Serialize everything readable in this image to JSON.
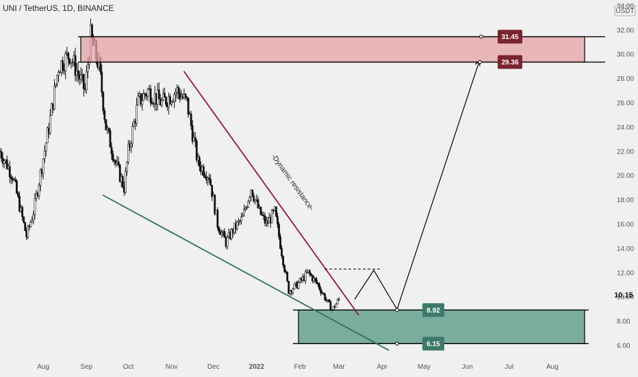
{
  "header": {
    "title": "UNI / TetherUS, 1D, BINANCE"
  },
  "price_axis": {
    "unit": "USDT",
    "current_price": "10.15"
  },
  "colors": {
    "background": "#f0f0f0",
    "candle": "#111111",
    "supply_zone": "#e5a2a6",
    "demand_zone": "#5e9c8a",
    "resistance_line": "#8e1b2a",
    "support_line": "#2f6e5e",
    "supply_tag": "#7a2430",
    "demand_tag": "#3d7a6a"
  },
  "annotations": {
    "dynamic_resistance_label": "-Dynamic resistance-",
    "supply_top": "31.45",
    "supply_bottom": "29.36",
    "demand_top": "8.92",
    "demand_bottom": "6.15"
  },
  "chart_data": {
    "type": "candlestick",
    "title": "UNI / TetherUS, 1D, BINANCE",
    "ylabel": "USDT",
    "ylim": [
      6,
      34
    ],
    "y_ticks": [
      "6.00",
      "8.00",
      "10.00",
      "12.00",
      "14.00",
      "16.00",
      "18.00",
      "20.00",
      "22.00",
      "24.00",
      "26.00",
      "28.00",
      "30.00",
      "32.00",
      "34.00"
    ],
    "x_ticks": [
      "Aug",
      "Sep",
      "Oct",
      "Nov",
      "Dec",
      "2022",
      "Feb",
      "Mar",
      "Apr",
      "May",
      "Jun",
      "Jul",
      "Aug"
    ],
    "price_path": [
      [
        "2021-07-01",
        22
      ],
      [
        "2021-07-10",
        20
      ],
      [
        "2021-07-20",
        15
      ],
      [
        "2021-07-25",
        17
      ],
      [
        "2021-08-05",
        24
      ],
      [
        "2021-08-12",
        29
      ],
      [
        "2021-08-20",
        30
      ],
      [
        "2021-08-31",
        27
      ],
      [
        "2021-09-04",
        31.5
      ],
      [
        "2021-09-10",
        29
      ],
      [
        "2021-09-15",
        24
      ],
      [
        "2021-09-22",
        21
      ],
      [
        "2021-09-28",
        19
      ],
      [
        "2021-10-01",
        22
      ],
      [
        "2021-10-08",
        26
      ],
      [
        "2021-10-15",
        27
      ],
      [
        "2021-10-25",
        26
      ],
      [
        "2021-11-05",
        27
      ],
      [
        "2021-11-12",
        26
      ],
      [
        "2021-11-20",
        21
      ],
      [
        "2021-11-28",
        20
      ],
      [
        "2021-12-04",
        16
      ],
      [
        "2021-12-10",
        14.5
      ],
      [
        "2021-12-15",
        15.5
      ],
      [
        "2021-12-22",
        16.5
      ],
      [
        "2021-12-28",
        19
      ],
      [
        "2022-01-03",
        17
      ],
      [
        "2022-01-08",
        16
      ],
      [
        "2022-01-14",
        17
      ],
      [
        "2022-01-20",
        13
      ],
      [
        "2022-01-24",
        10.5
      ],
      [
        "2022-01-30",
        11
      ],
      [
        "2022-02-07",
        12
      ],
      [
        "2022-02-14",
        11
      ],
      [
        "2022-02-24",
        8.9
      ],
      [
        "2022-03-01",
        9.8
      ]
    ],
    "zones": [
      {
        "name": "supply",
        "top": 31.45,
        "bottom": 29.36
      },
      {
        "name": "demand",
        "top": 8.92,
        "bottom": 6.15
      }
    ],
    "trendlines": [
      {
        "name": "Dynamic resistance",
        "from": [
          "2021-11-01",
          28.6
        ],
        "to": [
          "2022-03-25",
          8.5
        ]
      },
      {
        "name": "support",
        "from": [
          "2021-09-16",
          18.4
        ],
        "to": [
          "2022-03-25",
          5.6
        ]
      }
    ],
    "projection": [
      [
        "2022-03-01",
        9.8
      ],
      [
        "2022-03-14",
        12.2
      ],
      [
        "2022-03-28",
        9.2
      ],
      [
        "2022-06-14",
        29.4
      ]
    ],
    "breakout_level": 12.3
  }
}
